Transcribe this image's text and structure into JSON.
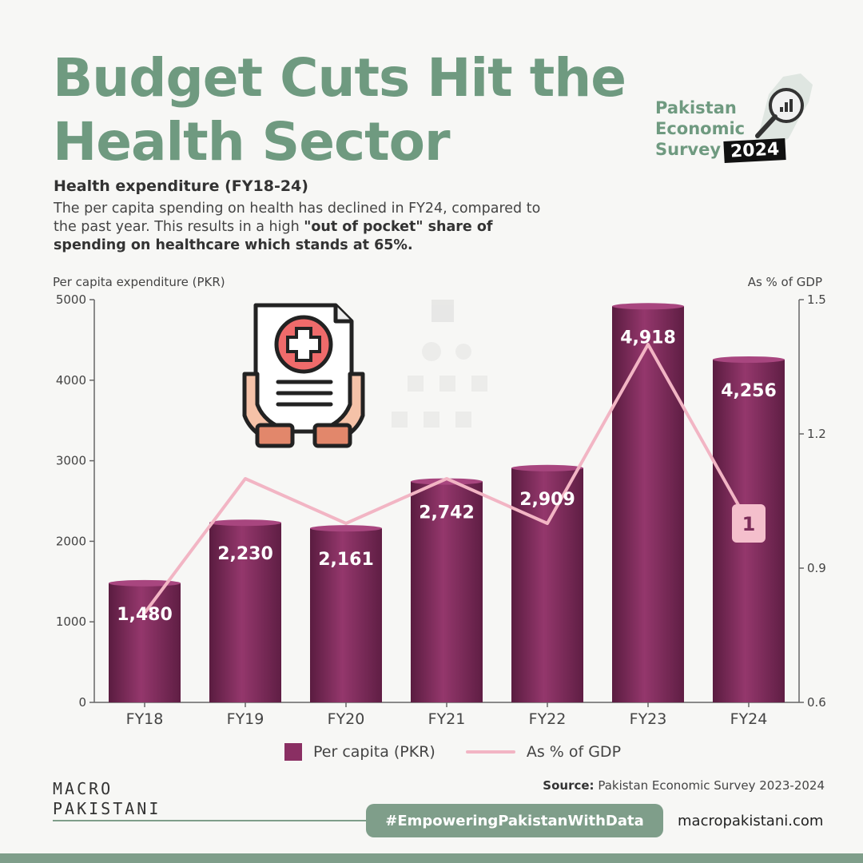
{
  "header": {
    "title_line1": "Budget Cuts Hit the",
    "title_line2": "Health Sector",
    "subheading": "Health expenditure (FY18-24)",
    "desc_plain": "The per capita spending on health has declined in FY24, compared to the past year. This results in a high ",
    "desc_bold": "\"out of pocket\" share of spending on healthcare which stands at 65%."
  },
  "logo": {
    "line1": "Pakistan",
    "line2": "Economic",
    "line3": "Survey",
    "year": "2024"
  },
  "colors": {
    "accent": "#6f9a80",
    "bar": "#8a2f63",
    "line": "#f2b5c4"
  },
  "chart_data": {
    "type": "bar",
    "categories": [
      "FY18",
      "FY19",
      "FY20",
      "FY21",
      "FY22",
      "FY23",
      "FY24"
    ],
    "series": [
      {
        "name": "Per capita (PKR)",
        "type": "bar",
        "axis": "left",
        "values": [
          1480,
          2230,
          2161,
          2742,
          2909,
          4918,
          4256
        ],
        "labels": [
          "1,480",
          "2,230",
          "2,161",
          "2,742",
          "2,909",
          "4,918",
          "4,256"
        ]
      },
      {
        "name": "As % of GDP",
        "type": "line",
        "axis": "right",
        "values": [
          0.8,
          1.1,
          1.0,
          1.1,
          1.0,
          1.4,
          1.0
        ]
      }
    ],
    "last_line_label": "1",
    "ylabel_left": "Per capita expenditure (PKR)",
    "ylabel_right": "As % of GDP",
    "ylim_left": [
      0,
      5000
    ],
    "ylim_right": [
      0.6,
      1.5
    ],
    "yticks_left": [
      "0",
      "1000",
      "2000",
      "3000",
      "4000",
      "5000"
    ],
    "yticks_right": [
      "0.6",
      "0.9",
      "1.2",
      "1.5"
    ],
    "yticks_right_values": [
      0.6,
      0.9,
      1.2,
      1.5
    ],
    "grid": false,
    "legend": "bottom"
  },
  "legend": {
    "bar_label": "Per capita (PKR)",
    "line_label": "As % of GDP"
  },
  "footer": {
    "source_label": "Source:",
    "source_text": "Pakistan Economic Survey 2023-2024",
    "brand_line1": "MACRO",
    "brand_line2": "PAKISTANI",
    "hashtag": "#EmpoweringPakistanWithData",
    "website": "macropakistani.com"
  }
}
